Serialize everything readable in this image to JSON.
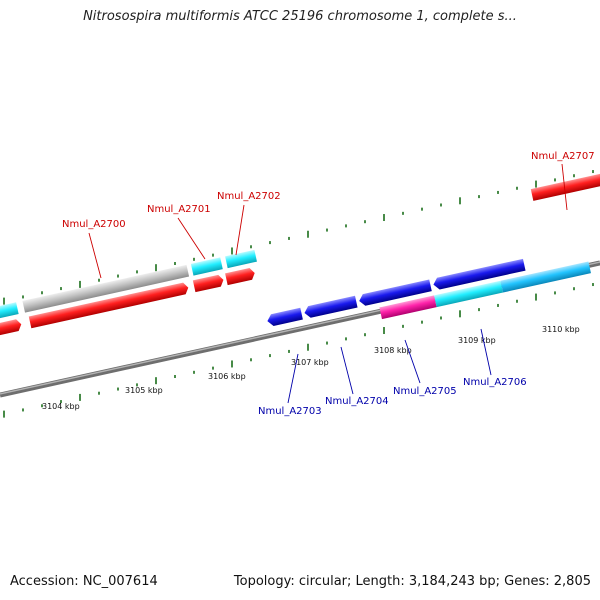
{
  "title": "Nitrosospira multiformis ATCC 25196 chromosome 1, complete s...",
  "footer": {
    "accession": "Accession: NC_007614",
    "topology": "Topology: circular; Length: 3,184,243 bp; Genes: 2,805"
  },
  "colors": {
    "forward_label": "#cc0000",
    "reverse_label": "#0000aa",
    "forward_cds": "#ff1f1f",
    "reverse_cds": "#1a1aee",
    "cyan_cds": "#22eeff",
    "light_blue_cds": "#22c4ff",
    "magenta_cds": "#ff22aa",
    "grey_cds": "#c4c4c4",
    "tick_green": "#1a6e1a",
    "backbone": "#808080"
  },
  "axis": {
    "unit": "kbp",
    "ticks": [
      {
        "kbp": 3104,
        "label": "3104 kbp"
      },
      {
        "kbp": 3105,
        "label": "3105 kbp"
      },
      {
        "kbp": 3106,
        "label": "3106 kbp"
      },
      {
        "kbp": 3107,
        "label": "3107 kbp"
      },
      {
        "kbp": 3108,
        "label": "3108 kbp"
      },
      {
        "kbp": 3109,
        "label": "3109 kbp"
      },
      {
        "kbp": 3110,
        "label": "3110 kbp"
      }
    ]
  },
  "gene_labels": [
    {
      "name": "Nmul_A2700",
      "strand": "forward"
    },
    {
      "name": "Nmul_A2701",
      "strand": "forward"
    },
    {
      "name": "Nmul_A2702",
      "strand": "forward"
    },
    {
      "name": "Nmul_A2707",
      "strand": "forward"
    },
    {
      "name": "Nmul_A2703",
      "strand": "reverse"
    },
    {
      "name": "Nmul_A2704",
      "strand": "reverse"
    },
    {
      "name": "Nmul_A2705",
      "strand": "reverse"
    },
    {
      "name": "Nmul_A2706",
      "strand": "reverse"
    }
  ]
}
